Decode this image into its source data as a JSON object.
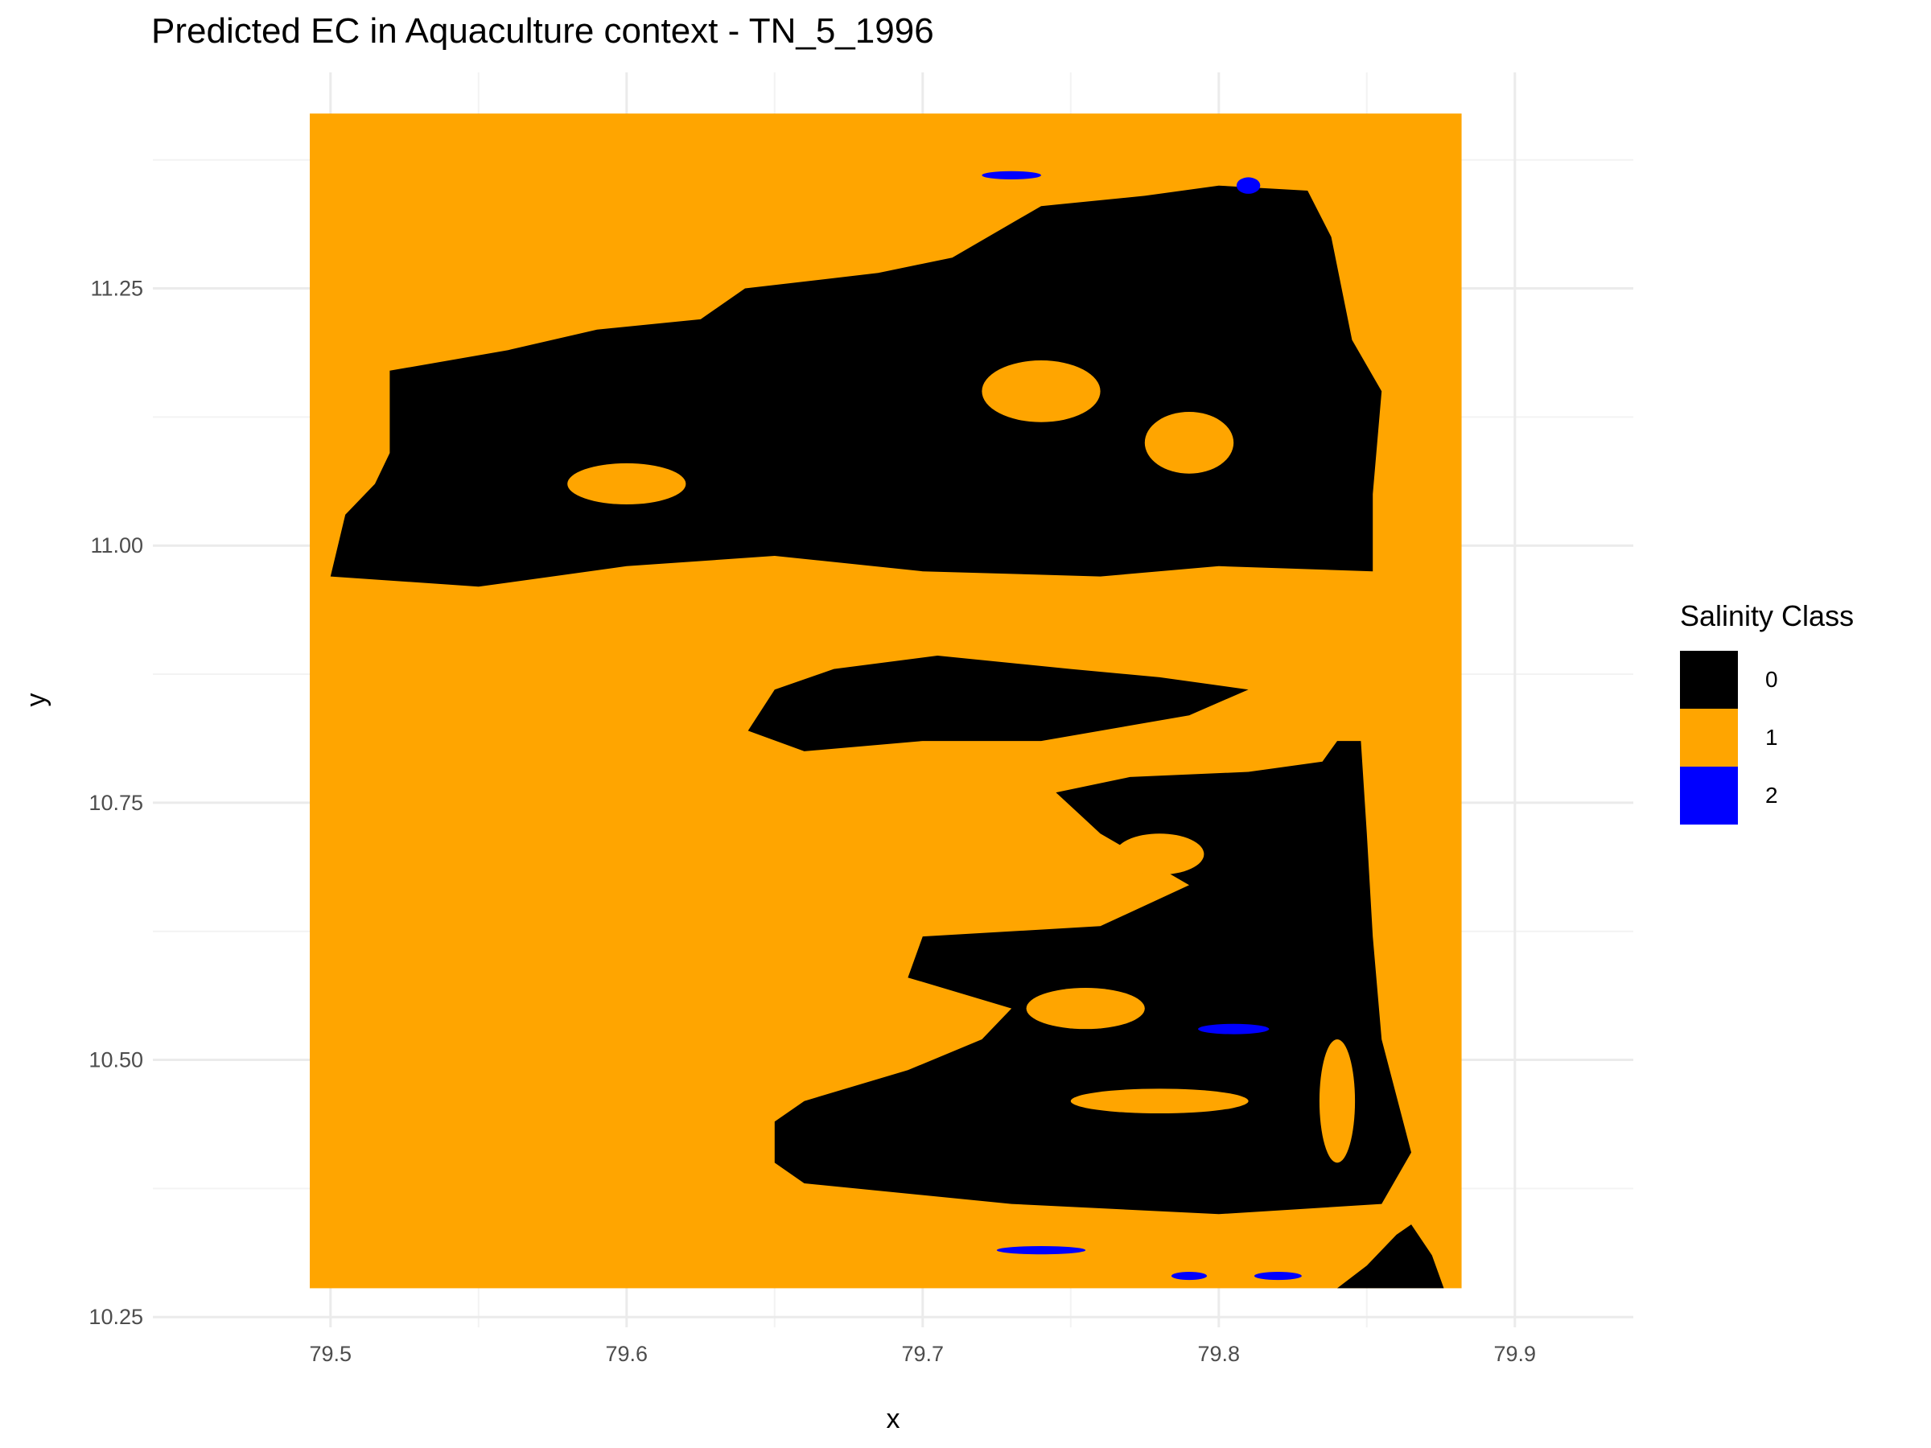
{
  "chart_data": {
    "type": "heatmap",
    "title": "Predicted EC in Aquaculture context - TN_5_1996",
    "xlabel": "x",
    "ylabel": "y",
    "xlim": [
      79.44,
      79.94
    ],
    "ylim": [
      10.24,
      11.46
    ],
    "raster_extent": {
      "x": [
        79.493,
        79.882
      ],
      "y": [
        10.278,
        11.42
      ]
    },
    "x_ticks": [
      79.5,
      79.6,
      79.7,
      79.8,
      79.9
    ],
    "x_tick_labels": [
      "79.5",
      "79.6",
      "79.7",
      "79.8",
      "79.9"
    ],
    "y_ticks": [
      10.25,
      10.5,
      10.75,
      11.0,
      11.25
    ],
    "y_tick_labels": [
      "10.25",
      "10.50",
      "10.75",
      "11.00",
      "11.25"
    ],
    "grid": true,
    "legend": {
      "title": "Salinity Class",
      "position": "right",
      "entries": [
        {
          "label": "0",
          "color": "#000000"
        },
        {
          "label": "1",
          "color": "#FFA500"
        },
        {
          "label": "2",
          "color": "#0000FF"
        }
      ]
    },
    "background_class": "1",
    "regions": [
      {
        "class": "0",
        "name": "northern-landmass",
        "polygon": [
          [
            79.5,
            10.97
          ],
          [
            79.505,
            11.03
          ],
          [
            79.515,
            11.06
          ],
          [
            79.52,
            11.09
          ],
          [
            79.52,
            11.17
          ],
          [
            79.56,
            11.19
          ],
          [
            79.59,
            11.21
          ],
          [
            79.625,
            11.22
          ],
          [
            79.64,
            11.25
          ],
          [
            79.685,
            11.265
          ],
          [
            79.71,
            11.28
          ],
          [
            79.74,
            11.33
          ],
          [
            79.775,
            11.34
          ],
          [
            79.8,
            11.35
          ],
          [
            79.83,
            11.345
          ],
          [
            79.838,
            11.3
          ],
          [
            79.845,
            11.2
          ],
          [
            79.855,
            11.15
          ],
          [
            79.852,
            11.05
          ],
          [
            79.852,
            10.975
          ],
          [
            79.8,
            10.98
          ],
          [
            79.76,
            10.97
          ],
          [
            79.7,
            10.975
          ],
          [
            79.65,
            10.99
          ],
          [
            79.6,
            10.98
          ],
          [
            79.55,
            10.96
          ]
        ]
      },
      {
        "class": "0",
        "name": "middle-landmass",
        "polygon": [
          [
            79.641,
            10.82
          ],
          [
            79.65,
            10.86
          ],
          [
            79.67,
            10.88
          ],
          [
            79.705,
            10.893
          ],
          [
            79.75,
            10.88
          ],
          [
            79.78,
            10.872
          ],
          [
            79.81,
            10.86
          ],
          [
            79.79,
            10.835
          ],
          [
            79.74,
            10.81
          ],
          [
            79.7,
            10.81
          ],
          [
            79.66,
            10.8
          ]
        ]
      },
      {
        "class": "0",
        "name": "southern-landmass",
        "polygon": [
          [
            79.65,
            10.4
          ],
          [
            79.65,
            10.44
          ],
          [
            79.66,
            10.46
          ],
          [
            79.695,
            10.49
          ],
          [
            79.72,
            10.52
          ],
          [
            79.73,
            10.55
          ],
          [
            79.695,
            10.58
          ],
          [
            79.7,
            10.62
          ],
          [
            79.76,
            10.63
          ],
          [
            79.79,
            10.67
          ],
          [
            79.76,
            10.72
          ],
          [
            79.745,
            10.76
          ],
          [
            79.77,
            10.775
          ],
          [
            79.81,
            10.78
          ],
          [
            79.835,
            10.79
          ],
          [
            79.84,
            10.81
          ],
          [
            79.848,
            10.81
          ],
          [
            79.85,
            10.72
          ],
          [
            79.852,
            10.62
          ],
          [
            79.855,
            10.52
          ],
          [
            79.865,
            10.41
          ],
          [
            79.855,
            10.36
          ],
          [
            79.8,
            10.35
          ],
          [
            79.73,
            10.36
          ],
          [
            79.66,
            10.38
          ]
        ]
      },
      {
        "class": "0",
        "name": "southeast-fringe",
        "polygon": [
          [
            79.84,
            10.278
          ],
          [
            79.85,
            10.3
          ],
          [
            79.86,
            10.33
          ],
          [
            79.865,
            10.34
          ],
          [
            79.872,
            10.31
          ],
          [
            79.876,
            10.278
          ]
        ]
      }
    ],
    "inland_patches": [
      {
        "class": "1",
        "center": [
          79.74,
          11.15
        ],
        "rx": 0.02,
        "ry": 0.03
      },
      {
        "class": "1",
        "center": [
          79.79,
          11.1
        ],
        "rx": 0.015,
        "ry": 0.03
      },
      {
        "class": "1",
        "center": [
          79.6,
          11.06
        ],
        "rx": 0.02,
        "ry": 0.02
      },
      {
        "class": "1",
        "center": [
          79.78,
          10.7
        ],
        "rx": 0.015,
        "ry": 0.02
      },
      {
        "class": "1",
        "center": [
          79.755,
          10.55
        ],
        "rx": 0.02,
        "ry": 0.02
      },
      {
        "class": "1",
        "center": [
          79.78,
          10.46
        ],
        "rx": 0.03,
        "ry": 0.012
      },
      {
        "class": "1",
        "center": [
          79.84,
          10.46
        ],
        "rx": 0.006,
        "ry": 0.06
      },
      {
        "class": "2",
        "center": [
          79.805,
          10.53
        ],
        "rx": 0.012,
        "ry": 0.005
      },
      {
        "class": "2",
        "center": [
          79.74,
          10.315
        ],
        "rx": 0.015,
        "ry": 0.004
      },
      {
        "class": "2",
        "center": [
          79.82,
          10.29
        ],
        "rx": 0.008,
        "ry": 0.004
      },
      {
        "class": "2",
        "center": [
          79.79,
          10.29
        ],
        "rx": 0.006,
        "ry": 0.004
      },
      {
        "class": "2",
        "center": [
          79.73,
          11.36
        ],
        "rx": 0.01,
        "ry": 0.004
      },
      {
        "class": "2",
        "center": [
          79.81,
          11.35
        ],
        "rx": 0.004,
        "ry": 0.008
      }
    ]
  }
}
